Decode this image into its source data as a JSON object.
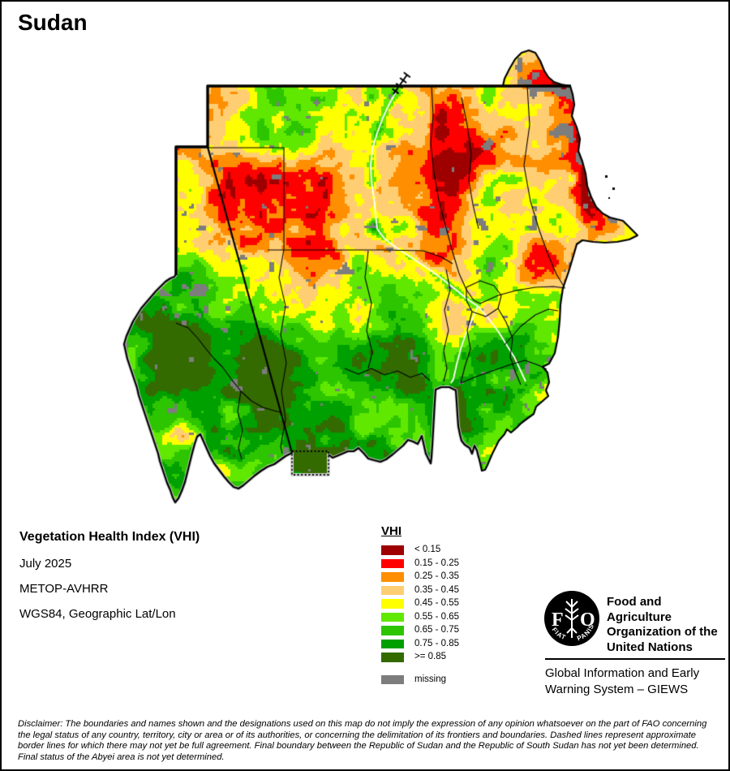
{
  "title": "Sudan",
  "info": {
    "product": "Vegetation Health Index (VHI)",
    "date": "July 2025",
    "sensor": "METOP-AVHRR",
    "projection": "WGS84, Geographic Lat/Lon"
  },
  "legend": {
    "title": "VHI",
    "classes": [
      {
        "label": "< 0.15",
        "color": "#9E0000",
        "max": 0.15
      },
      {
        "label": "0.15 - 0.25",
        "color": "#FF0000",
        "max": 0.25
      },
      {
        "label": "0.25 - 0.35",
        "color": "#FF8E00",
        "max": 0.35
      },
      {
        "label": "0.35 - 0.45",
        "color": "#FFCE73",
        "max": 0.45
      },
      {
        "label": "0.45 - 0.55",
        "color": "#FFFF00",
        "max": 0.55
      },
      {
        "label": "0.55 - 0.65",
        "color": "#60E800",
        "max": 0.65
      },
      {
        "label": "0.65 - 0.75",
        "color": "#2CC500",
        "max": 0.75
      },
      {
        "label": "0.75 - 0.85",
        "color": "#00A000",
        "max": 0.85
      },
      {
        "label": ">= 0.85",
        "color": "#336B00",
        "max": 1.01
      }
    ],
    "missing": {
      "label": "missing",
      "color": "#7D7D7D"
    }
  },
  "map": {
    "region": "Sudan",
    "border_color": "#000000",
    "river_color": "#FFFFFF",
    "halo_color": "#CFCFCF",
    "background": "#FFFFFF"
  },
  "footer": {
    "fao_logo": {
      "letter_f": "F",
      "letter_o": "O",
      "motto_left": "FIAT",
      "motto_right": "PANIS"
    },
    "fao_lines": [
      "Food and Agriculture",
      "Organization of the",
      "United Nations"
    ],
    "giews_lines": [
      "Global Information and Early",
      "Warning System – GIEWS"
    ]
  },
  "disclaimer": "Disclaimer: The boundaries and names shown and the designations used on this map do not imply the expression of any opinion whatsoever on the part of FAO concerning the legal status of any country, territory, city or area or of its authorities, or concerning the delimitation of its frontiers and boundaries. Dashed lines represent approximate border lines for which there may not yet be full agreement. Final boundary between the Republic of Sudan and the Republic of South Sudan has not yet been determined. Final status of the Abyei area is not yet determined."
}
